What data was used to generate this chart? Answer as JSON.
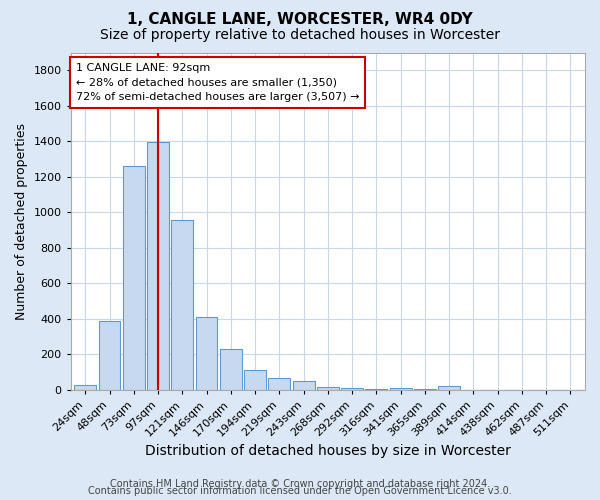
{
  "title": "1, CANGLE LANE, WORCESTER, WR4 0DY",
  "subtitle": "Size of property relative to detached houses in Worcester",
  "xlabel": "Distribution of detached houses by size in Worcester",
  "ylabel": "Number of detached properties",
  "bar_labels": [
    "24sqm",
    "48sqm",
    "73sqm",
    "97sqm",
    "121sqm",
    "146sqm",
    "170sqm",
    "194sqm",
    "219sqm",
    "243sqm",
    "268sqm",
    "292sqm",
    "316sqm",
    "341sqm",
    "365sqm",
    "389sqm",
    "414sqm",
    "438sqm",
    "462sqm",
    "487sqm",
    "511sqm"
  ],
  "bar_values": [
    25,
    390,
    1260,
    1395,
    955,
    410,
    228,
    115,
    65,
    48,
    18,
    10,
    8,
    12,
    3,
    22,
    0,
    0,
    0,
    0,
    0
  ],
  "bar_color": "#c6d9f0",
  "bar_edgecolor": "#5b9bd5",
  "vline_x": 3.0,
  "vline_color": "#cc0000",
  "annotation_text": "1 CANGLE LANE: 92sqm\n← 28% of detached houses are smaller (1,350)\n72% of semi-detached houses are larger (3,507) →",
  "annotation_box_color": "#ffffff",
  "annotation_box_edgecolor": "#cc0000",
  "ylim": [
    0,
    1900
  ],
  "yticks": [
    0,
    200,
    400,
    600,
    800,
    1000,
    1200,
    1400,
    1600,
    1800
  ],
  "figure_background": "#dce8f5",
  "plot_background": "#ffffff",
  "grid_color": "#c8d8e8",
  "footer_line1": "Contains HM Land Registry data © Crown copyright and database right 2024.",
  "footer_line2": "Contains public sector information licensed under the Open Government Licence v3.0.",
  "title_fontsize": 11,
  "subtitle_fontsize": 10,
  "xlabel_fontsize": 10,
  "ylabel_fontsize": 9,
  "tick_fontsize": 8,
  "footer_fontsize": 7
}
